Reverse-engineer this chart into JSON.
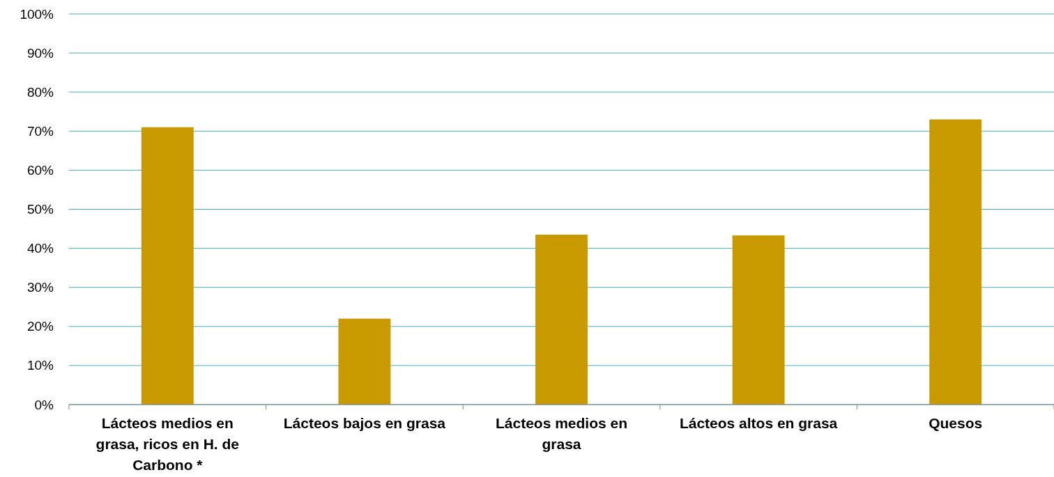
{
  "chart_data": {
    "type": "bar",
    "categories": [
      "Lácteos medios en grasa, ricos en H. de Carbono *",
      "Lácteos bajos en grasa",
      "Lácteos medios en grasa",
      "Lácteos altos en grasa",
      "Quesos"
    ],
    "values": [
      71,
      22,
      43.5,
      43.3,
      73
    ],
    "color": "#c99a00",
    "ylim": [
      0,
      100
    ],
    "yticks": [
      {
        "value": 0,
        "label": "0%"
      },
      {
        "value": 10,
        "label": "10%"
      },
      {
        "value": 20,
        "label": "20%"
      },
      {
        "value": 30,
        "label": "30%"
      },
      {
        "value": 40,
        "label": "40%"
      },
      {
        "value": 50,
        "label": "50%"
      },
      {
        "value": 60,
        "label": "60%"
      },
      {
        "value": 70,
        "label": "70%"
      },
      {
        "value": 80,
        "label": "80%"
      },
      {
        "value": 90,
        "label": "90%"
      },
      {
        "value": 100,
        "label": "100%"
      }
    ],
    "grid": "y"
  }
}
